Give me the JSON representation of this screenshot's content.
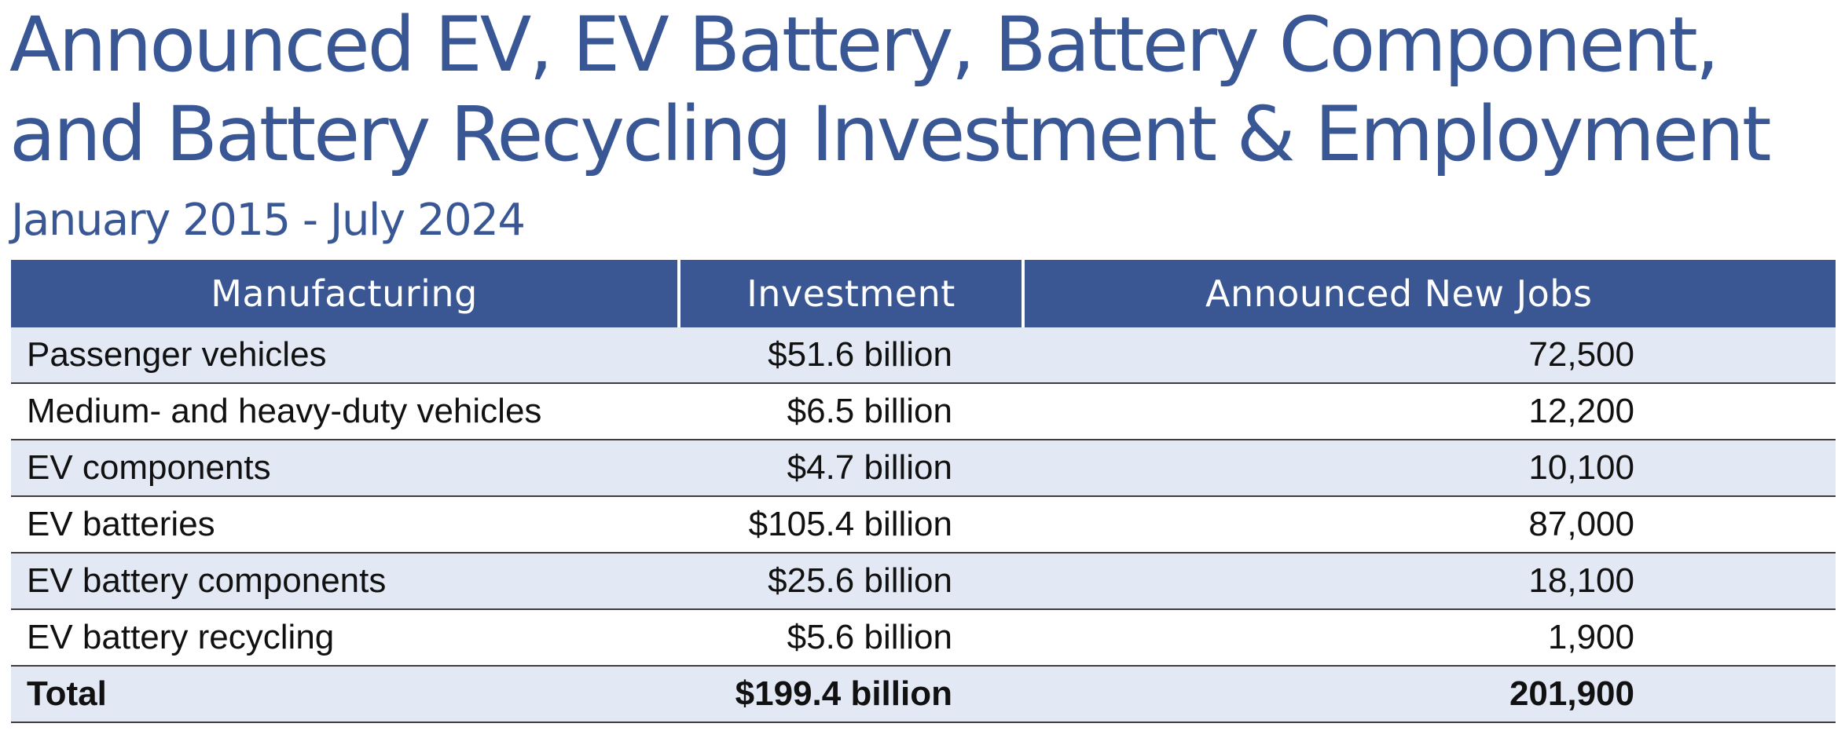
{
  "title_line1": "Announced EV, EV Battery, Battery Component,",
  "title_line2": "and Battery Recycling Investment & Employment",
  "subtitle": "January 2015 - July 2024",
  "table": {
    "headers": [
      "Manufacturing",
      "Investment",
      "Announced New Jobs"
    ],
    "rows": [
      {
        "category": "Passenger vehicles",
        "investment": "$51.6 billion",
        "jobs": "72,500"
      },
      {
        "category": "Medium- and heavy-duty vehicles",
        "investment": "$6.5 billion",
        "jobs": "12,200"
      },
      {
        "category": "EV components",
        "investment": "$4.7 billion",
        "jobs": "10,100"
      },
      {
        "category": "EV batteries",
        "investment": "$105.4 billion",
        "jobs": "87,000"
      },
      {
        "category": "EV battery components",
        "investment": "$25.6 billion",
        "jobs": "18,100"
      },
      {
        "category": "EV battery recycling",
        "investment": "$5.6 billion",
        "jobs": "1,900"
      }
    ],
    "total": {
      "category": "Total",
      "investment": "$199.4 billion",
      "jobs": "201,900"
    }
  },
  "colors": {
    "title": "#3a5795",
    "header_bg": "#3a5794",
    "row_shade": "#e3e8f5"
  }
}
